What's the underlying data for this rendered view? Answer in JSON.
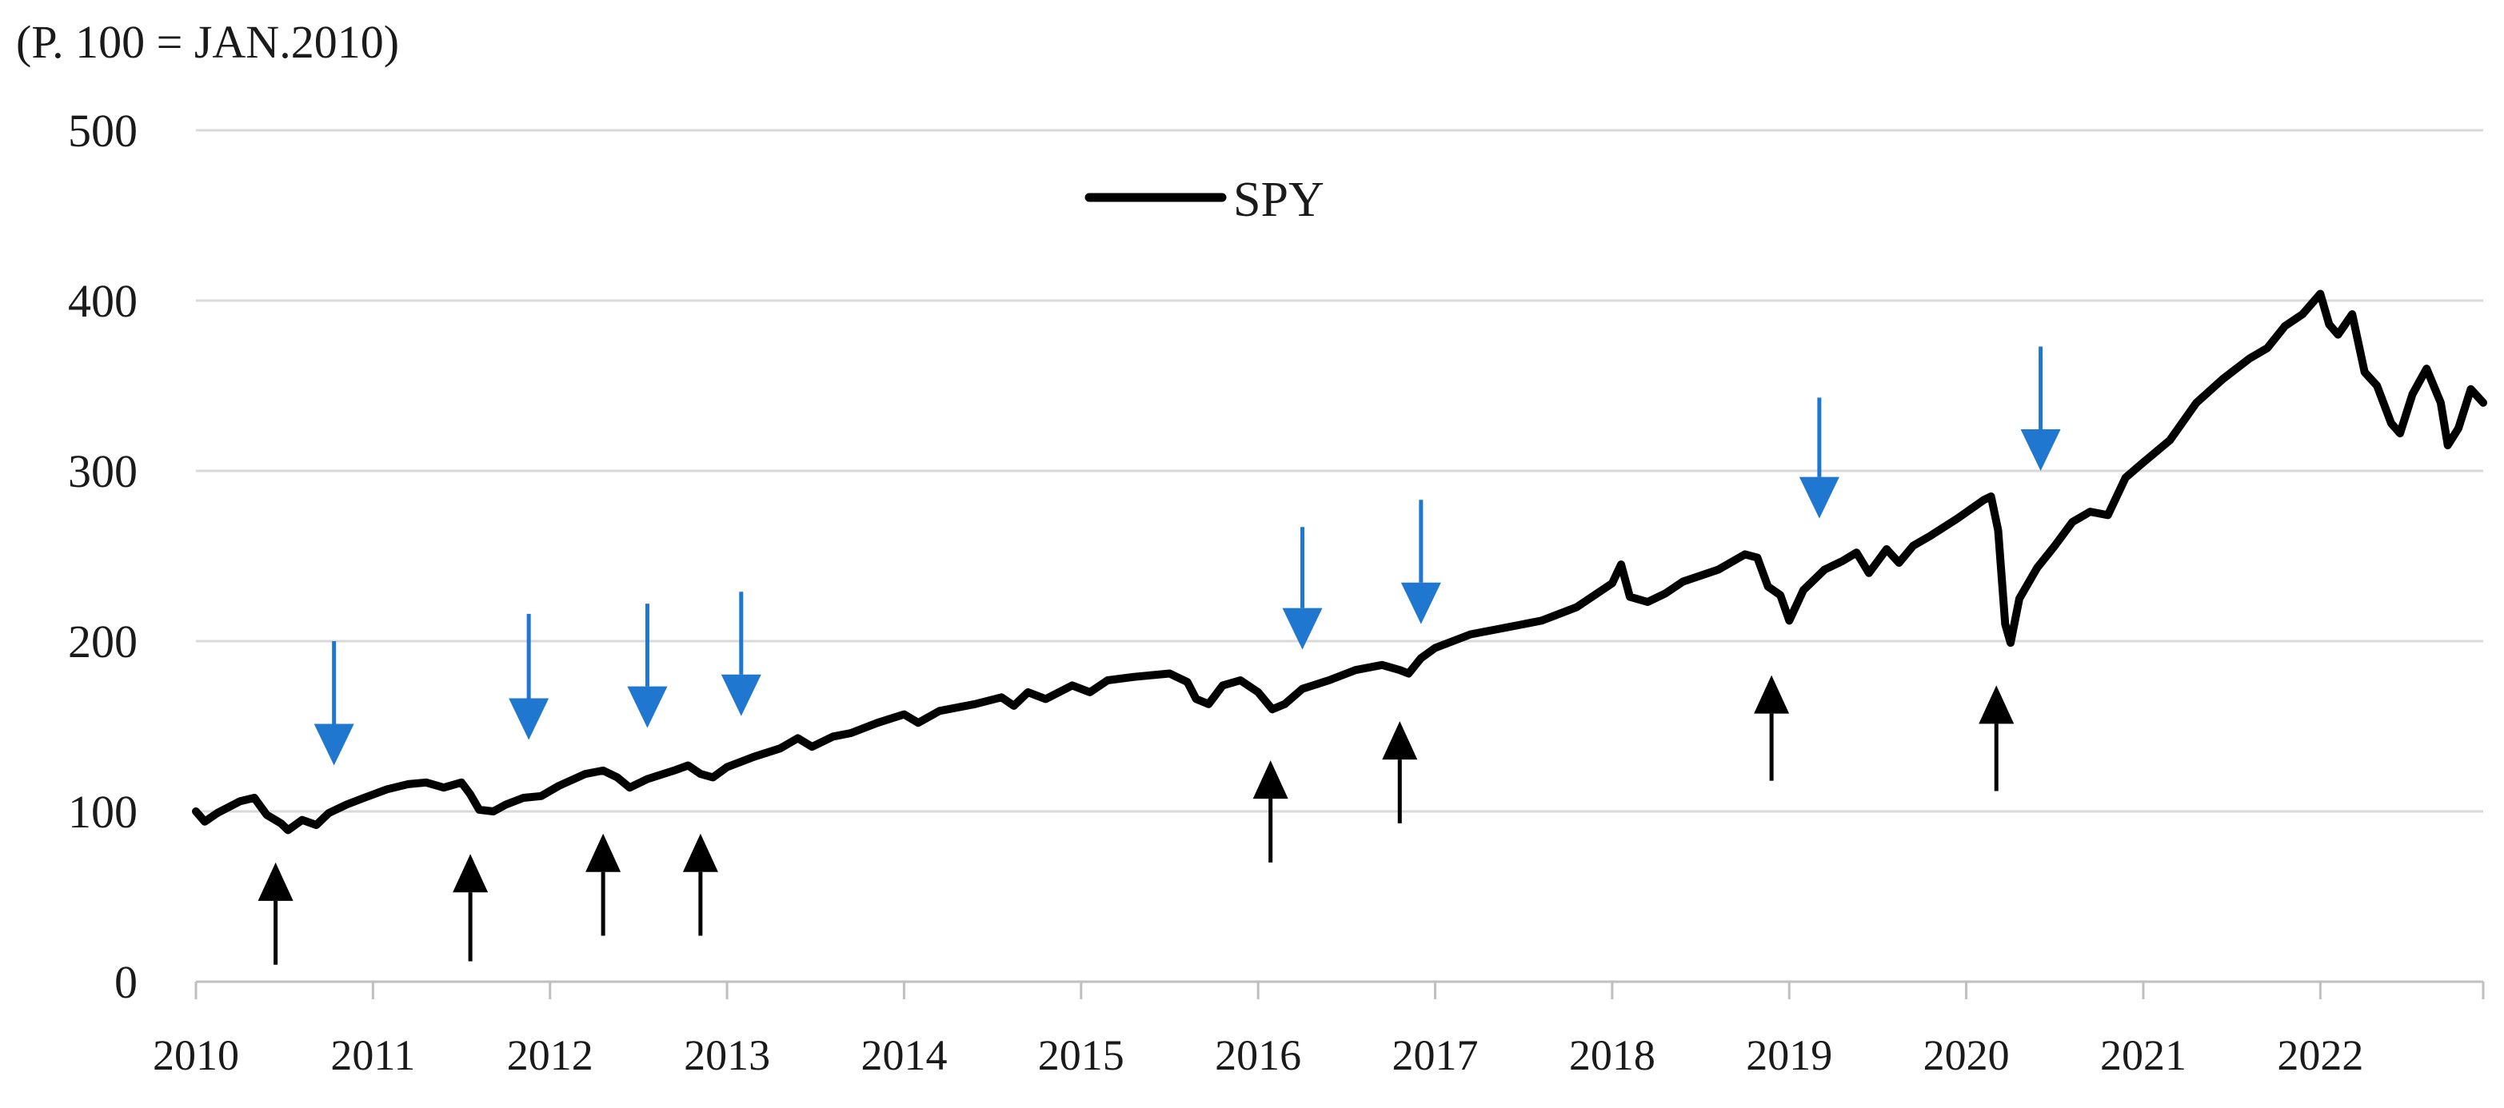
{
  "chart_data": {
    "type": "line",
    "title": "",
    "unit_label": "(P. 100 = JAN.2010)",
    "xlabel": "",
    "ylabel": "",
    "xlim": [
      2010,
      2022.92
    ],
    "ylim": [
      0,
      500
    ],
    "grid": true,
    "y_ticks": [
      "0",
      "100",
      "200",
      "300",
      "400",
      "500"
    ],
    "x_tick_labels": [
      "2010",
      "2011",
      "2012",
      "2013",
      "2014",
      "2015",
      "2016",
      "2017",
      "2018",
      "2019",
      "2020",
      "2021",
      "2022"
    ],
    "legend": {
      "placement": "top-center",
      "label": "SPY"
    },
    "series": [
      {
        "name": "SPY",
        "color": "#000000",
        "points": [
          [
            2010.0,
            100
          ],
          [
            2010.05,
            94
          ],
          [
            2010.12,
            99
          ],
          [
            2010.25,
            106
          ],
          [
            2010.33,
            108
          ],
          [
            2010.4,
            98
          ],
          [
            2010.48,
            93
          ],
          [
            2010.52,
            89
          ],
          [
            2010.6,
            95
          ],
          [
            2010.68,
            92
          ],
          [
            2010.75,
            99
          ],
          [
            2010.85,
            104
          ],
          [
            2010.95,
            108
          ],
          [
            2011.08,
            113
          ],
          [
            2011.2,
            116
          ],
          [
            2011.3,
            117
          ],
          [
            2011.4,
            114
          ],
          [
            2011.5,
            117
          ],
          [
            2011.55,
            110
          ],
          [
            2011.6,
            101
          ],
          [
            2011.68,
            100
          ],
          [
            2011.75,
            104
          ],
          [
            2011.85,
            108
          ],
          [
            2011.95,
            109
          ],
          [
            2012.05,
            115
          ],
          [
            2012.2,
            122
          ],
          [
            2012.3,
            124
          ],
          [
            2012.38,
            120
          ],
          [
            2012.45,
            114
          ],
          [
            2012.55,
            119
          ],
          [
            2012.7,
            124
          ],
          [
            2012.78,
            127
          ],
          [
            2012.85,
            122
          ],
          [
            2012.92,
            120
          ],
          [
            2013.0,
            126
          ],
          [
            2013.15,
            132
          ],
          [
            2013.3,
            137
          ],
          [
            2013.4,
            143
          ],
          [
            2013.48,
            138
          ],
          [
            2013.6,
            144
          ],
          [
            2013.7,
            146
          ],
          [
            2013.85,
            152
          ],
          [
            2014.0,
            157
          ],
          [
            2014.08,
            152
          ],
          [
            2014.2,
            159
          ],
          [
            2014.4,
            163
          ],
          [
            2014.55,
            167
          ],
          [
            2014.62,
            162
          ],
          [
            2014.7,
            170
          ],
          [
            2014.8,
            166
          ],
          [
            2014.95,
            174
          ],
          [
            2015.05,
            170
          ],
          [
            2015.15,
            177
          ],
          [
            2015.3,
            179
          ],
          [
            2015.5,
            181
          ],
          [
            2015.6,
            176
          ],
          [
            2015.65,
            166
          ],
          [
            2015.72,
            163
          ],
          [
            2015.8,
            174
          ],
          [
            2015.9,
            177
          ],
          [
            2016.0,
            170
          ],
          [
            2016.08,
            160
          ],
          [
            2016.15,
            163
          ],
          [
            2016.25,
            172
          ],
          [
            2016.4,
            177
          ],
          [
            2016.55,
            183
          ],
          [
            2016.7,
            186
          ],
          [
            2016.8,
            183
          ],
          [
            2016.85,
            181
          ],
          [
            2016.92,
            190
          ],
          [
            2017.0,
            196
          ],
          [
            2017.2,
            204
          ],
          [
            2017.4,
            208
          ],
          [
            2017.6,
            212
          ],
          [
            2017.8,
            220
          ],
          [
            2018.0,
            234
          ],
          [
            2018.05,
            245
          ],
          [
            2018.1,
            226
          ],
          [
            2018.2,
            223
          ],
          [
            2018.3,
            228
          ],
          [
            2018.4,
            235
          ],
          [
            2018.6,
            242
          ],
          [
            2018.75,
            251
          ],
          [
            2018.82,
            249
          ],
          [
            2018.88,
            232
          ],
          [
            2018.95,
            227
          ],
          [
            2019.0,
            212
          ],
          [
            2019.08,
            230
          ],
          [
            2019.2,
            242
          ],
          [
            2019.3,
            247
          ],
          [
            2019.38,
            252
          ],
          [
            2019.45,
            240
          ],
          [
            2019.55,
            254
          ],
          [
            2019.62,
            246
          ],
          [
            2019.7,
            256
          ],
          [
            2019.8,
            262
          ],
          [
            2019.95,
            272
          ],
          [
            2020.1,
            283
          ],
          [
            2020.14,
            285
          ],
          [
            2020.18,
            265
          ],
          [
            2020.22,
            210
          ],
          [
            2020.25,
            199
          ],
          [
            2020.3,
            225
          ],
          [
            2020.4,
            243
          ],
          [
            2020.5,
            256
          ],
          [
            2020.6,
            270
          ],
          [
            2020.7,
            276
          ],
          [
            2020.8,
            274
          ],
          [
            2020.9,
            296
          ],
          [
            2021.0,
            305
          ],
          [
            2021.15,
            318
          ],
          [
            2021.3,
            340
          ],
          [
            2021.45,
            354
          ],
          [
            2021.6,
            366
          ],
          [
            2021.7,
            372
          ],
          [
            2021.8,
            385
          ],
          [
            2021.9,
            392
          ],
          [
            2022.0,
            404
          ],
          [
            2022.05,
            386
          ],
          [
            2022.1,
            380
          ],
          [
            2022.18,
            392
          ],
          [
            2022.25,
            358
          ],
          [
            2022.32,
            350
          ],
          [
            2022.4,
            328
          ],
          [
            2022.45,
            322
          ],
          [
            2022.52,
            345
          ],
          [
            2022.6,
            360
          ],
          [
            2022.68,
            340
          ],
          [
            2022.72,
            315
          ],
          [
            2022.78,
            325
          ],
          [
            2022.85,
            348
          ],
          [
            2022.92,
            340
          ]
        ]
      }
    ],
    "annotations": {
      "up_arrows": {
        "color": "#000000",
        "meaning": "upward arrows below the line",
        "marks": [
          {
            "x": 2010.45,
            "from": 10,
            "to": 70
          },
          {
            "x": 2011.55,
            "from": 12,
            "to": 75
          },
          {
            "x": 2012.3,
            "from": 27,
            "to": 87
          },
          {
            "x": 2012.85,
            "from": 27,
            "to": 87
          },
          {
            "x": 2016.07,
            "from": 70,
            "to": 130
          },
          {
            "x": 2016.8,
            "from": 93,
            "to": 153
          },
          {
            "x": 2018.9,
            "from": 118,
            "to": 180
          },
          {
            "x": 2020.17,
            "from": 112,
            "to": 174
          }
        ]
      },
      "down_arrows": {
        "color": "#1f77d0",
        "meaning": "downward arrows above the line",
        "marks": [
          {
            "x": 2010.78,
            "from": 200,
            "to": 127
          },
          {
            "x": 2011.88,
            "from": 216,
            "to": 142
          },
          {
            "x": 2012.55,
            "from": 222,
            "to": 149
          },
          {
            "x": 2013.08,
            "from": 229,
            "to": 156
          },
          {
            "x": 2016.25,
            "from": 267,
            "to": 195
          },
          {
            "x": 2016.92,
            "from": 283,
            "to": 210
          },
          {
            "x": 2019.17,
            "from": 343,
            "to": 272
          },
          {
            "x": 2020.42,
            "from": 373,
            "to": 300
          }
        ]
      }
    }
  }
}
